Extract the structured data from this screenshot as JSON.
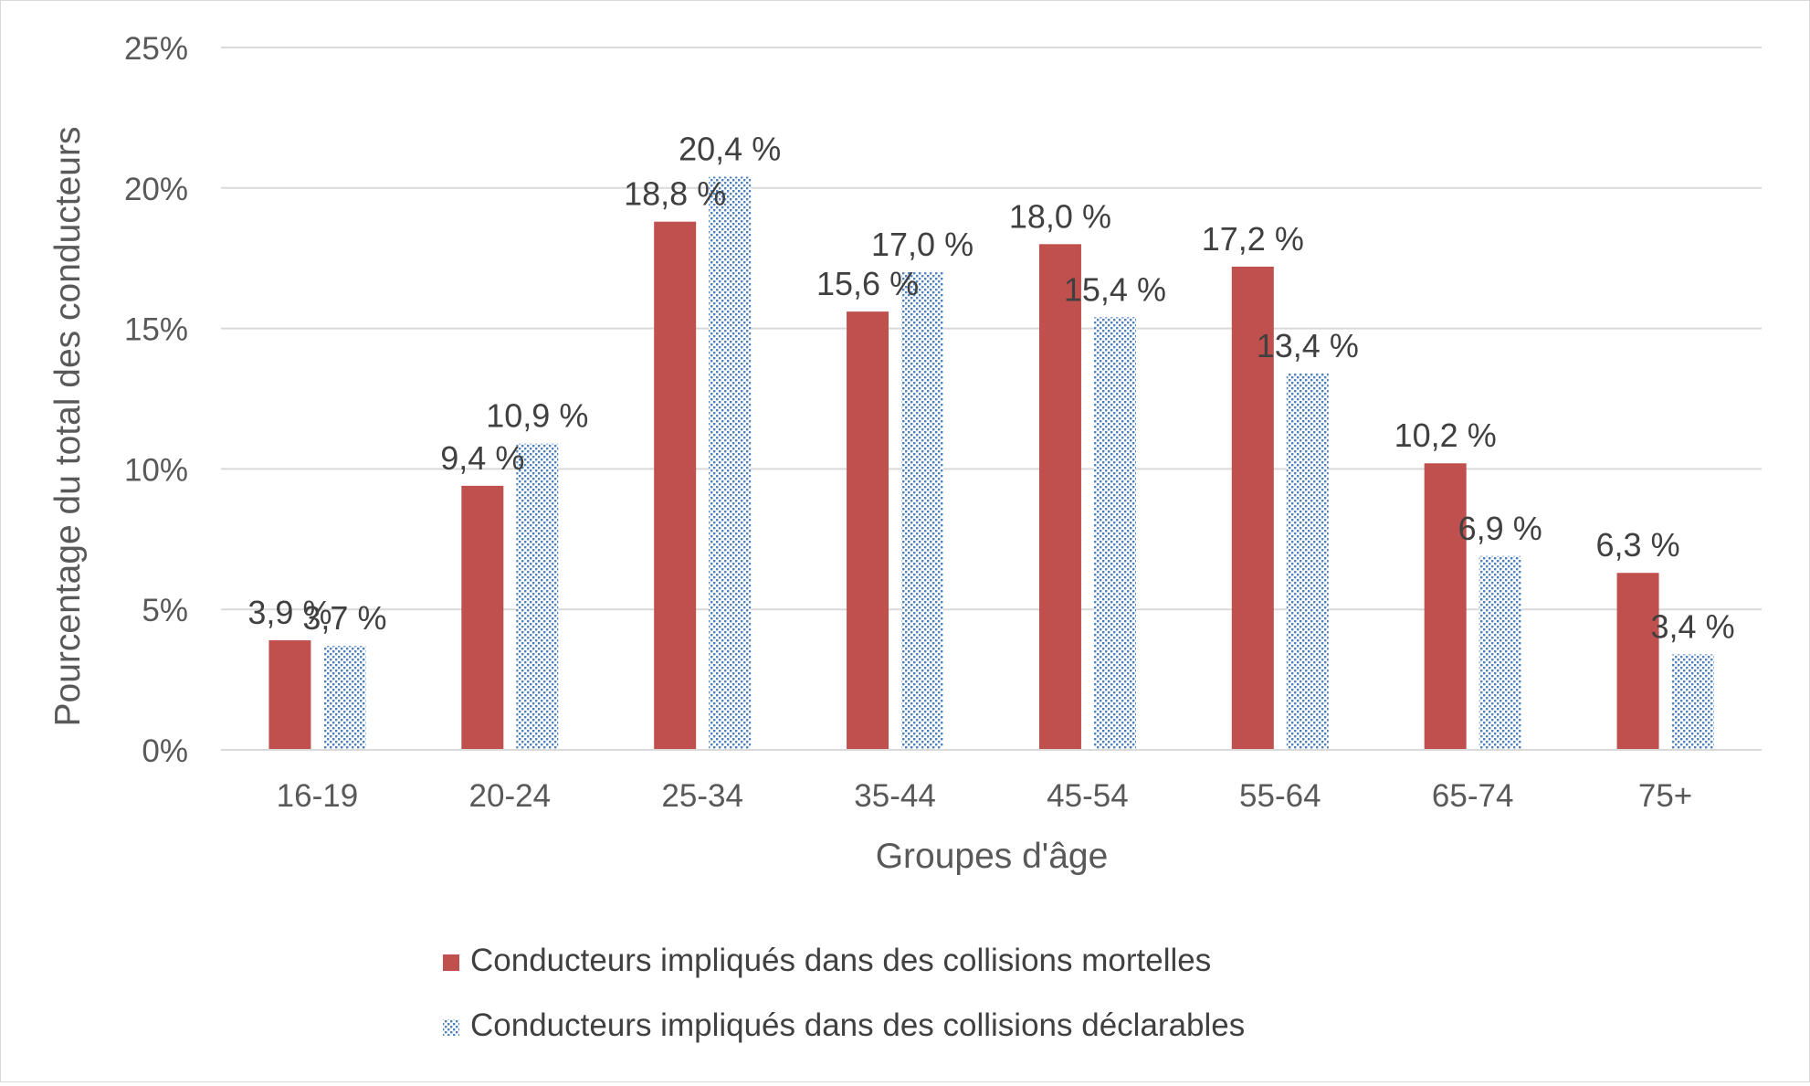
{
  "chart_data": {
    "type": "bar",
    "title": "",
    "xlabel": "Groupes d'âge",
    "ylabel": "Pourcentage du total des conducteurs",
    "ylim": [
      0,
      25
    ],
    "yticks": [
      0,
      5,
      10,
      15,
      20,
      25
    ],
    "ytick_labels": [
      "0%",
      "5%",
      "10%",
      "15%",
      "20%",
      "25%"
    ],
    "grid": true,
    "legend_position": "bottom",
    "categories": [
      "16-19",
      "20-24",
      "25-34",
      "35-44",
      "45-54",
      "55-64",
      "65-74",
      "75+"
    ],
    "series": [
      {
        "name": "Conducteurs impliqués dans des collisions mortelles",
        "values": [
          3.9,
          9.4,
          18.8,
          15.6,
          18.0,
          17.2,
          10.2,
          6.3
        ],
        "labels": [
          "3,9 %",
          "9,4 %",
          "18,8 %",
          "15,6 %",
          "18,0 %",
          "17,2 %",
          "10,2 %",
          "6,3 %"
        ],
        "color": "#c0504d",
        "fill": "solid"
      },
      {
        "name": "Conducteurs impliqués dans des collisions déclarables",
        "values": [
          3.7,
          10.9,
          20.4,
          17.0,
          15.4,
          13.4,
          6.9,
          3.4
        ],
        "labels": [
          "3,7 %",
          "10,9 %",
          "20,4 %",
          "17,0 %",
          "15,4 %",
          "13,4 %",
          "6,9 %",
          "3,4 %"
        ],
        "color": "#4f81bd",
        "fill": "dotted"
      }
    ]
  }
}
